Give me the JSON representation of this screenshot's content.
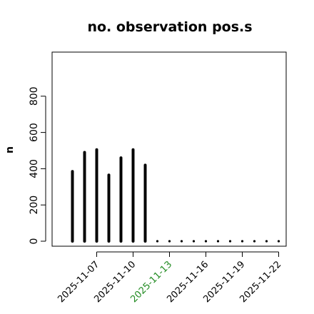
{
  "chart_data": {
    "type": "bar",
    "title": "no. observation pos.s",
    "xlabel": "",
    "ylabel": "n",
    "ylim": [
      0,
      1000
    ],
    "yticks": [
      0,
      200,
      400,
      600,
      800
    ],
    "xlim": [
      "2025-11-04",
      "2025-11-23"
    ],
    "x": [
      "2025-11-05",
      "2025-11-06",
      "2025-11-07",
      "2025-11-08",
      "2025-11-09",
      "2025-11-10",
      "2025-11-11",
      "2025-11-12",
      "2025-11-13",
      "2025-11-14",
      "2025-11-15",
      "2025-11-16",
      "2025-11-17",
      "2025-11-18",
      "2025-11-19",
      "2025-11-20",
      "2025-11-21",
      "2025-11-22"
    ],
    "values": [
      385,
      490,
      505,
      365,
      460,
      505,
      420,
      0,
      0,
      0,
      0,
      0,
      0,
      0,
      0,
      0,
      0,
      0
    ],
    "xticks": [
      "2025-11-07",
      "2025-11-10",
      "2025-11-13",
      "2025-11-16",
      "2025-11-19",
      "2025-11-22"
    ],
    "highlight_tick": "2025-11-13",
    "grid": false,
    "legend": "none",
    "colors": {
      "bar": "#000000",
      "axis": "#000000",
      "text": "#000000",
      "highlight_tick_text": "#228b22",
      "background": "#ffffff"
    }
  }
}
